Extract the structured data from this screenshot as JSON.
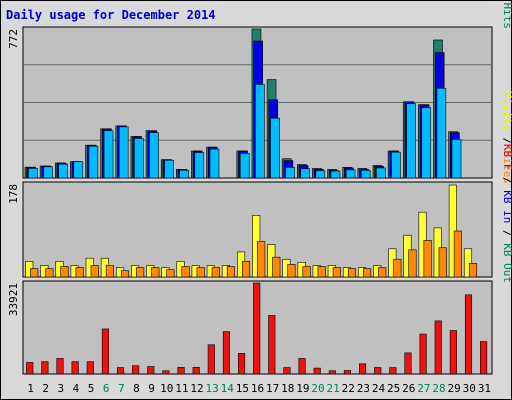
{
  "chart_data": {
    "type": "bar",
    "title": "Daily usage for December 2014",
    "title_color": "#0000cc",
    "background": "#c0c0c0",
    "frame_color": "#d9d9d9",
    "days": [
      "1",
      "2",
      "3",
      "4",
      "5",
      "6",
      "7",
      "8",
      "9",
      "10",
      "11",
      "12",
      "13",
      "14",
      "15",
      "16",
      "17",
      "18",
      "19",
      "20",
      "21",
      "22",
      "23",
      "24",
      "25",
      "26",
      "27",
      "28",
      "29",
      "30",
      "31"
    ],
    "weekend_days": [
      "6",
      "7",
      "13",
      "14",
      "20",
      "21",
      "27",
      "28"
    ],
    "weekday_color": "#000000",
    "weekend_color": "#00804a",
    "panels": [
      {
        "id": "hits-files-pages",
        "max_label": "772",
        "ymax": 772,
        "right_labels": [
          {
            "text": "Pages",
            "color": "#00bbee"
          },
          {
            "text": " / ",
            "color": "#000000"
          },
          {
            "text": "Files",
            "color": "#0000dd"
          },
          {
            "text": " / ",
            "color": "#000000"
          },
          {
            "text": "Hits",
            "color": "#00805f"
          }
        ],
        "series": [
          {
            "name": "Hits",
            "color": "#1f7f6a",
            "values": [
              56,
              62,
              78,
              85,
              170,
              255,
              270,
              215,
              245,
              95,
              45,
              140,
              160,
              0,
              140,
              772,
              510,
              100,
              70,
              50,
              45,
              55,
              50,
              65,
              140,
              395,
              380,
              715,
              240,
              0,
              0
            ]
          },
          {
            "name": "Files",
            "color": "#0000dd",
            "values": [
              56,
              62,
              78,
              85,
              170,
              255,
              270,
              215,
              245,
              95,
              45,
              140,
              160,
              0,
              140,
              710,
              405,
              90,
              65,
              45,
              40,
              52,
              45,
              60,
              140,
              395,
              380,
              650,
              235,
              0,
              0
            ]
          },
          {
            "name": "Pages",
            "color": "#00bbff",
            "values": [
              50,
              58,
              72,
              85,
              165,
              245,
              265,
              205,
              235,
              92,
              40,
              132,
              150,
              0,
              128,
              485,
              310,
              55,
              48,
              38,
              36,
              42,
              40,
              52,
              134,
              385,
              365,
              465,
              200,
              0,
              0
            ]
          }
        ]
      },
      {
        "id": "visits-sites",
        "max_label": "178",
        "ymax": 178,
        "right_labels": [
          {
            "text": "Visits",
            "color": "#eeee00"
          },
          {
            "text": " / ",
            "color": "#000000"
          },
          {
            "text": "Sites",
            "color": "#ff8000"
          }
        ],
        "series": [
          {
            "name": "Visits",
            "color": "#ffff33",
            "values": [
              30,
              22,
              30,
              22,
              36,
              36,
              18,
              22,
              22,
              18,
              30,
              22,
              22,
              22,
              48,
              118,
              62,
              34,
              28,
              22,
              22,
              18,
              18,
              22,
              54,
              80,
              124,
              94,
              176,
              54,
              0
            ]
          },
          {
            "name": "Sites",
            "color": "#ff8800",
            "values": [
              16,
              16,
              20,
              18,
              22,
              22,
              12,
              18,
              18,
              14,
              20,
              18,
              18,
              20,
              30,
              68,
              38,
              24,
              20,
              20,
              18,
              16,
              16,
              18,
              34,
              52,
              70,
              56,
              88,
              26,
              0
            ]
          }
        ]
      },
      {
        "id": "kb",
        "max_label": "33921",
        "ymax": 33921,
        "right_labels": [
          {
            "text": "KB F",
            "color": "#dd0000"
          },
          {
            "text": " / ",
            "color": "#000000"
          },
          {
            "text": "KB In",
            "color": "#0000cc"
          },
          {
            "text": " / ",
            "color": "#000000"
          },
          {
            "text": "KB Out",
            "color": "#00805f"
          }
        ],
        "series": [
          {
            "name": "KB F",
            "color": "#ee1111",
            "values": [
              4300,
              4600,
              5800,
              4600,
              4600,
              16800,
              2400,
              3100,
              2800,
              1200,
              2500,
              2500,
              10900,
              15800,
              7700,
              33921,
              21800,
              2400,
              5800,
              2200,
              1200,
              1300,
              3800,
              2400,
              2400,
              7900,
              14900,
              19800,
              16200,
              29500,
              12100
            ]
          }
        ]
      }
    ]
  }
}
